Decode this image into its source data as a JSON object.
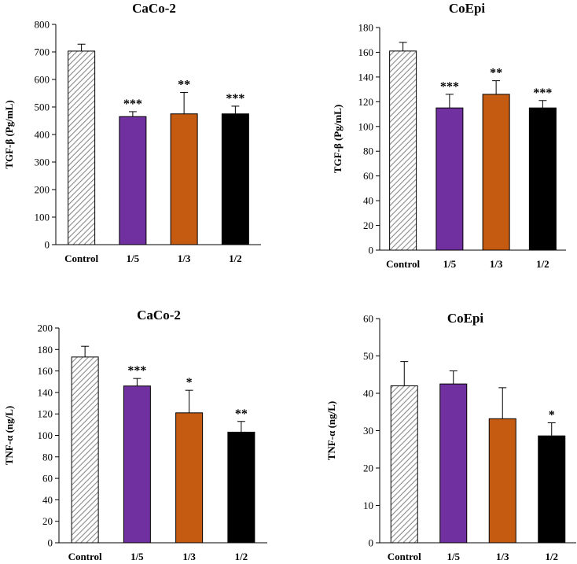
{
  "figure": {
    "description_panels": 4
  },
  "chart_data": [
    {
      "type": "bar",
      "title": "CaCo-2",
      "ylabel": "TGF-β (Pg/mL)",
      "xlabel": "",
      "categories": [
        "Control",
        "1/5",
        "1/3",
        "1/2"
      ],
      "values": [
        703,
        465,
        475,
        475
      ],
      "errors": [
        25,
        18,
        78,
        28
      ],
      "significance": [
        "",
        "***",
        "**",
        "***"
      ],
      "fills": [
        "hatch",
        "#7030a0",
        "#c55a11",
        "#000000"
      ],
      "ylim": [
        0,
        800
      ],
      "yticks": [
        0,
        100,
        200,
        300,
        400,
        500,
        600,
        700,
        800
      ]
    },
    {
      "type": "bar",
      "title": "CoEpi",
      "ylabel": "TGF-β (Pg/mL)",
      "xlabel": "",
      "categories": [
        "Control",
        "1/5",
        "1/3",
        "1/2"
      ],
      "values": [
        161,
        115,
        126,
        115
      ],
      "errors": [
        7,
        11,
        11,
        6
      ],
      "significance": [
        "",
        "***",
        "**",
        "***"
      ],
      "fills": [
        "hatch",
        "#7030a0",
        "#c55a11",
        "#000000"
      ],
      "ylim": [
        0,
        180
      ],
      "yticks": [
        0,
        20,
        40,
        60,
        80,
        100,
        120,
        140,
        160,
        180
      ]
    },
    {
      "type": "bar",
      "title": "CaCo-2",
      "ylabel": "TNF-α (ng/L)",
      "xlabel": "",
      "categories": [
        "Control",
        "1/5",
        "1/3",
        "1/2"
      ],
      "values": [
        173,
        146,
        121,
        103
      ],
      "errors": [
        10,
        7,
        21,
        10
      ],
      "significance": [
        "",
        "***",
        "*",
        "**"
      ],
      "fills": [
        "hatch",
        "#7030a0",
        "#c55a11",
        "#000000"
      ],
      "ylim": [
        0,
        200
      ],
      "yticks": [
        0,
        20,
        40,
        60,
        80,
        100,
        120,
        140,
        160,
        180,
        200
      ]
    },
    {
      "type": "bar",
      "title": "CoEpi",
      "ylabel": "TNF-α (ng/L)",
      "xlabel": "",
      "categories": [
        "Control",
        "1/5",
        "1/3",
        "1/2"
      ],
      "values": [
        42,
        42.5,
        33.2,
        28.6
      ],
      "errors": [
        6.5,
        3.5,
        8.3,
        3.5
      ],
      "significance": [
        "",
        "",
        "",
        "*"
      ],
      "fills": [
        "hatch",
        "#7030a0",
        "#c55a11",
        "#000000"
      ],
      "ylim": [
        0,
        60
      ],
      "yticks": [
        0,
        10,
        20,
        30,
        40,
        50,
        60
      ]
    }
  ]
}
